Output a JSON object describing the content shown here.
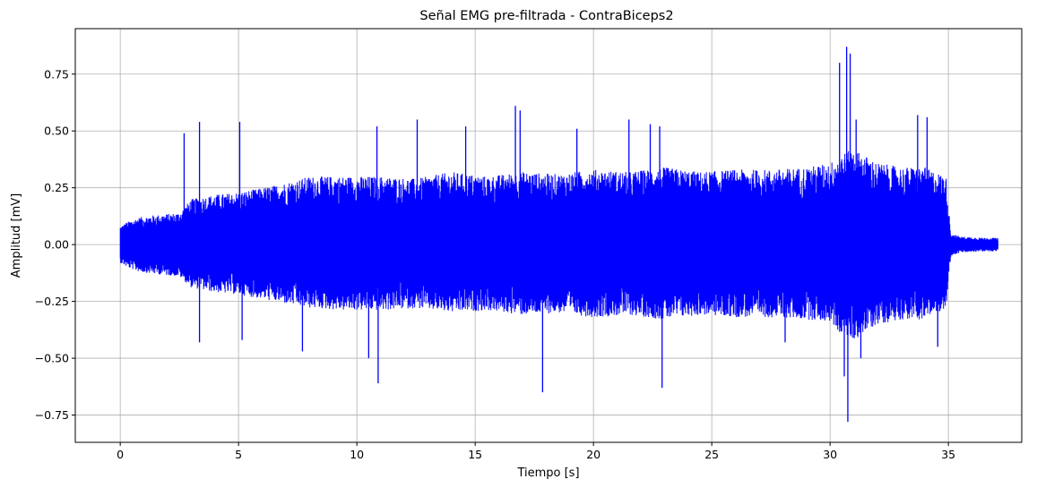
{
  "chart_data": {
    "type": "line",
    "title": "Señal EMG pre-filtrada - ContraBiceps2",
    "xlabel": "Tiempo [s]",
    "ylabel": "Amplitud [mV]",
    "xlim": [
      -1.9,
      38.1
    ],
    "ylim": [
      -0.87,
      0.95
    ],
    "x_ticks": [
      0,
      5,
      10,
      15,
      20,
      25,
      30,
      35
    ],
    "x_tick_labels": [
      "0",
      "5",
      "10",
      "15",
      "20",
      "25",
      "30",
      "35"
    ],
    "y_ticks": [
      -0.75,
      -0.5,
      -0.25,
      0.0,
      0.25,
      0.5,
      0.75
    ],
    "y_tick_labels": [
      "−0.75",
      "−0.50",
      "−0.25",
      "0.00",
      "0.25",
      "0.50",
      "0.75"
    ],
    "grid": true,
    "series": [
      {
        "color": "#0000ff",
        "x_range": [
          0,
          37.1
        ],
        "envelope": {
          "t": [
            0.0,
            0.3,
            0.8,
            1.5,
            2.5,
            3.0,
            4.0,
            5.0,
            6.5,
            8.0,
            9.5,
            11.0,
            12.5,
            14.0,
            15.5,
            17.0,
            18.5,
            20.0,
            21.5,
            23.0,
            24.5,
            26.0,
            27.5,
            29.0,
            30.0,
            30.5,
            31.0,
            32.0,
            33.0,
            34.0,
            34.9,
            35.1,
            35.5,
            36.5,
            37.1
          ],
          "max": [
            0.08,
            0.1,
            0.12,
            0.13,
            0.14,
            0.2,
            0.22,
            0.23,
            0.26,
            0.3,
            0.3,
            0.3,
            0.29,
            0.32,
            0.3,
            0.32,
            0.31,
            0.33,
            0.32,
            0.34,
            0.32,
            0.33,
            0.33,
            0.34,
            0.36,
            0.4,
            0.42,
            0.36,
            0.34,
            0.34,
            0.3,
            0.05,
            0.035,
            0.03,
            0.03
          ],
          "min": [
            -0.08,
            -0.1,
            -0.12,
            -0.13,
            -0.14,
            -0.19,
            -0.21,
            -0.22,
            -0.25,
            -0.28,
            -0.29,
            -0.29,
            -0.28,
            -0.3,
            -0.29,
            -0.31,
            -0.3,
            -0.32,
            -0.31,
            -0.33,
            -0.31,
            -0.32,
            -0.32,
            -0.33,
            -0.34,
            -0.4,
            -0.42,
            -0.35,
            -0.33,
            -0.33,
            -0.28,
            -0.05,
            -0.035,
            -0.03,
            -0.03
          ]
        },
        "spikes": [
          {
            "t": 2.7,
            "y": 0.49
          },
          {
            "t": 3.35,
            "y": 0.54
          },
          {
            "t": 5.05,
            "y": 0.54
          },
          {
            "t": 10.85,
            "y": 0.52
          },
          {
            "t": 12.55,
            "y": 0.55
          },
          {
            "t": 14.6,
            "y": 0.52
          },
          {
            "t": 16.7,
            "y": 0.61
          },
          {
            "t": 16.9,
            "y": 0.59
          },
          {
            "t": 19.3,
            "y": 0.51
          },
          {
            "t": 21.5,
            "y": 0.55
          },
          {
            "t": 22.4,
            "y": 0.53
          },
          {
            "t": 22.8,
            "y": 0.52
          },
          {
            "t": 30.4,
            "y": 0.8
          },
          {
            "t": 30.7,
            "y": 0.87
          },
          {
            "t": 30.85,
            "y": 0.84
          },
          {
            "t": 31.1,
            "y": 0.55
          },
          {
            "t": 33.7,
            "y": 0.57
          },
          {
            "t": 34.1,
            "y": 0.56
          },
          {
            "t": 3.35,
            "y": -0.43
          },
          {
            "t": 5.15,
            "y": -0.42
          },
          {
            "t": 7.7,
            "y": -0.47
          },
          {
            "t": 10.5,
            "y": -0.5
          },
          {
            "t": 10.9,
            "y": -0.61
          },
          {
            "t": 17.85,
            "y": -0.65
          },
          {
            "t": 22.9,
            "y": -0.63
          },
          {
            "t": 30.75,
            "y": -0.78
          },
          {
            "t": 30.6,
            "y": -0.58
          },
          {
            "t": 31.3,
            "y": -0.5
          },
          {
            "t": 34.55,
            "y": -0.45
          },
          {
            "t": 28.1,
            "y": -0.43
          }
        ]
      }
    ]
  }
}
